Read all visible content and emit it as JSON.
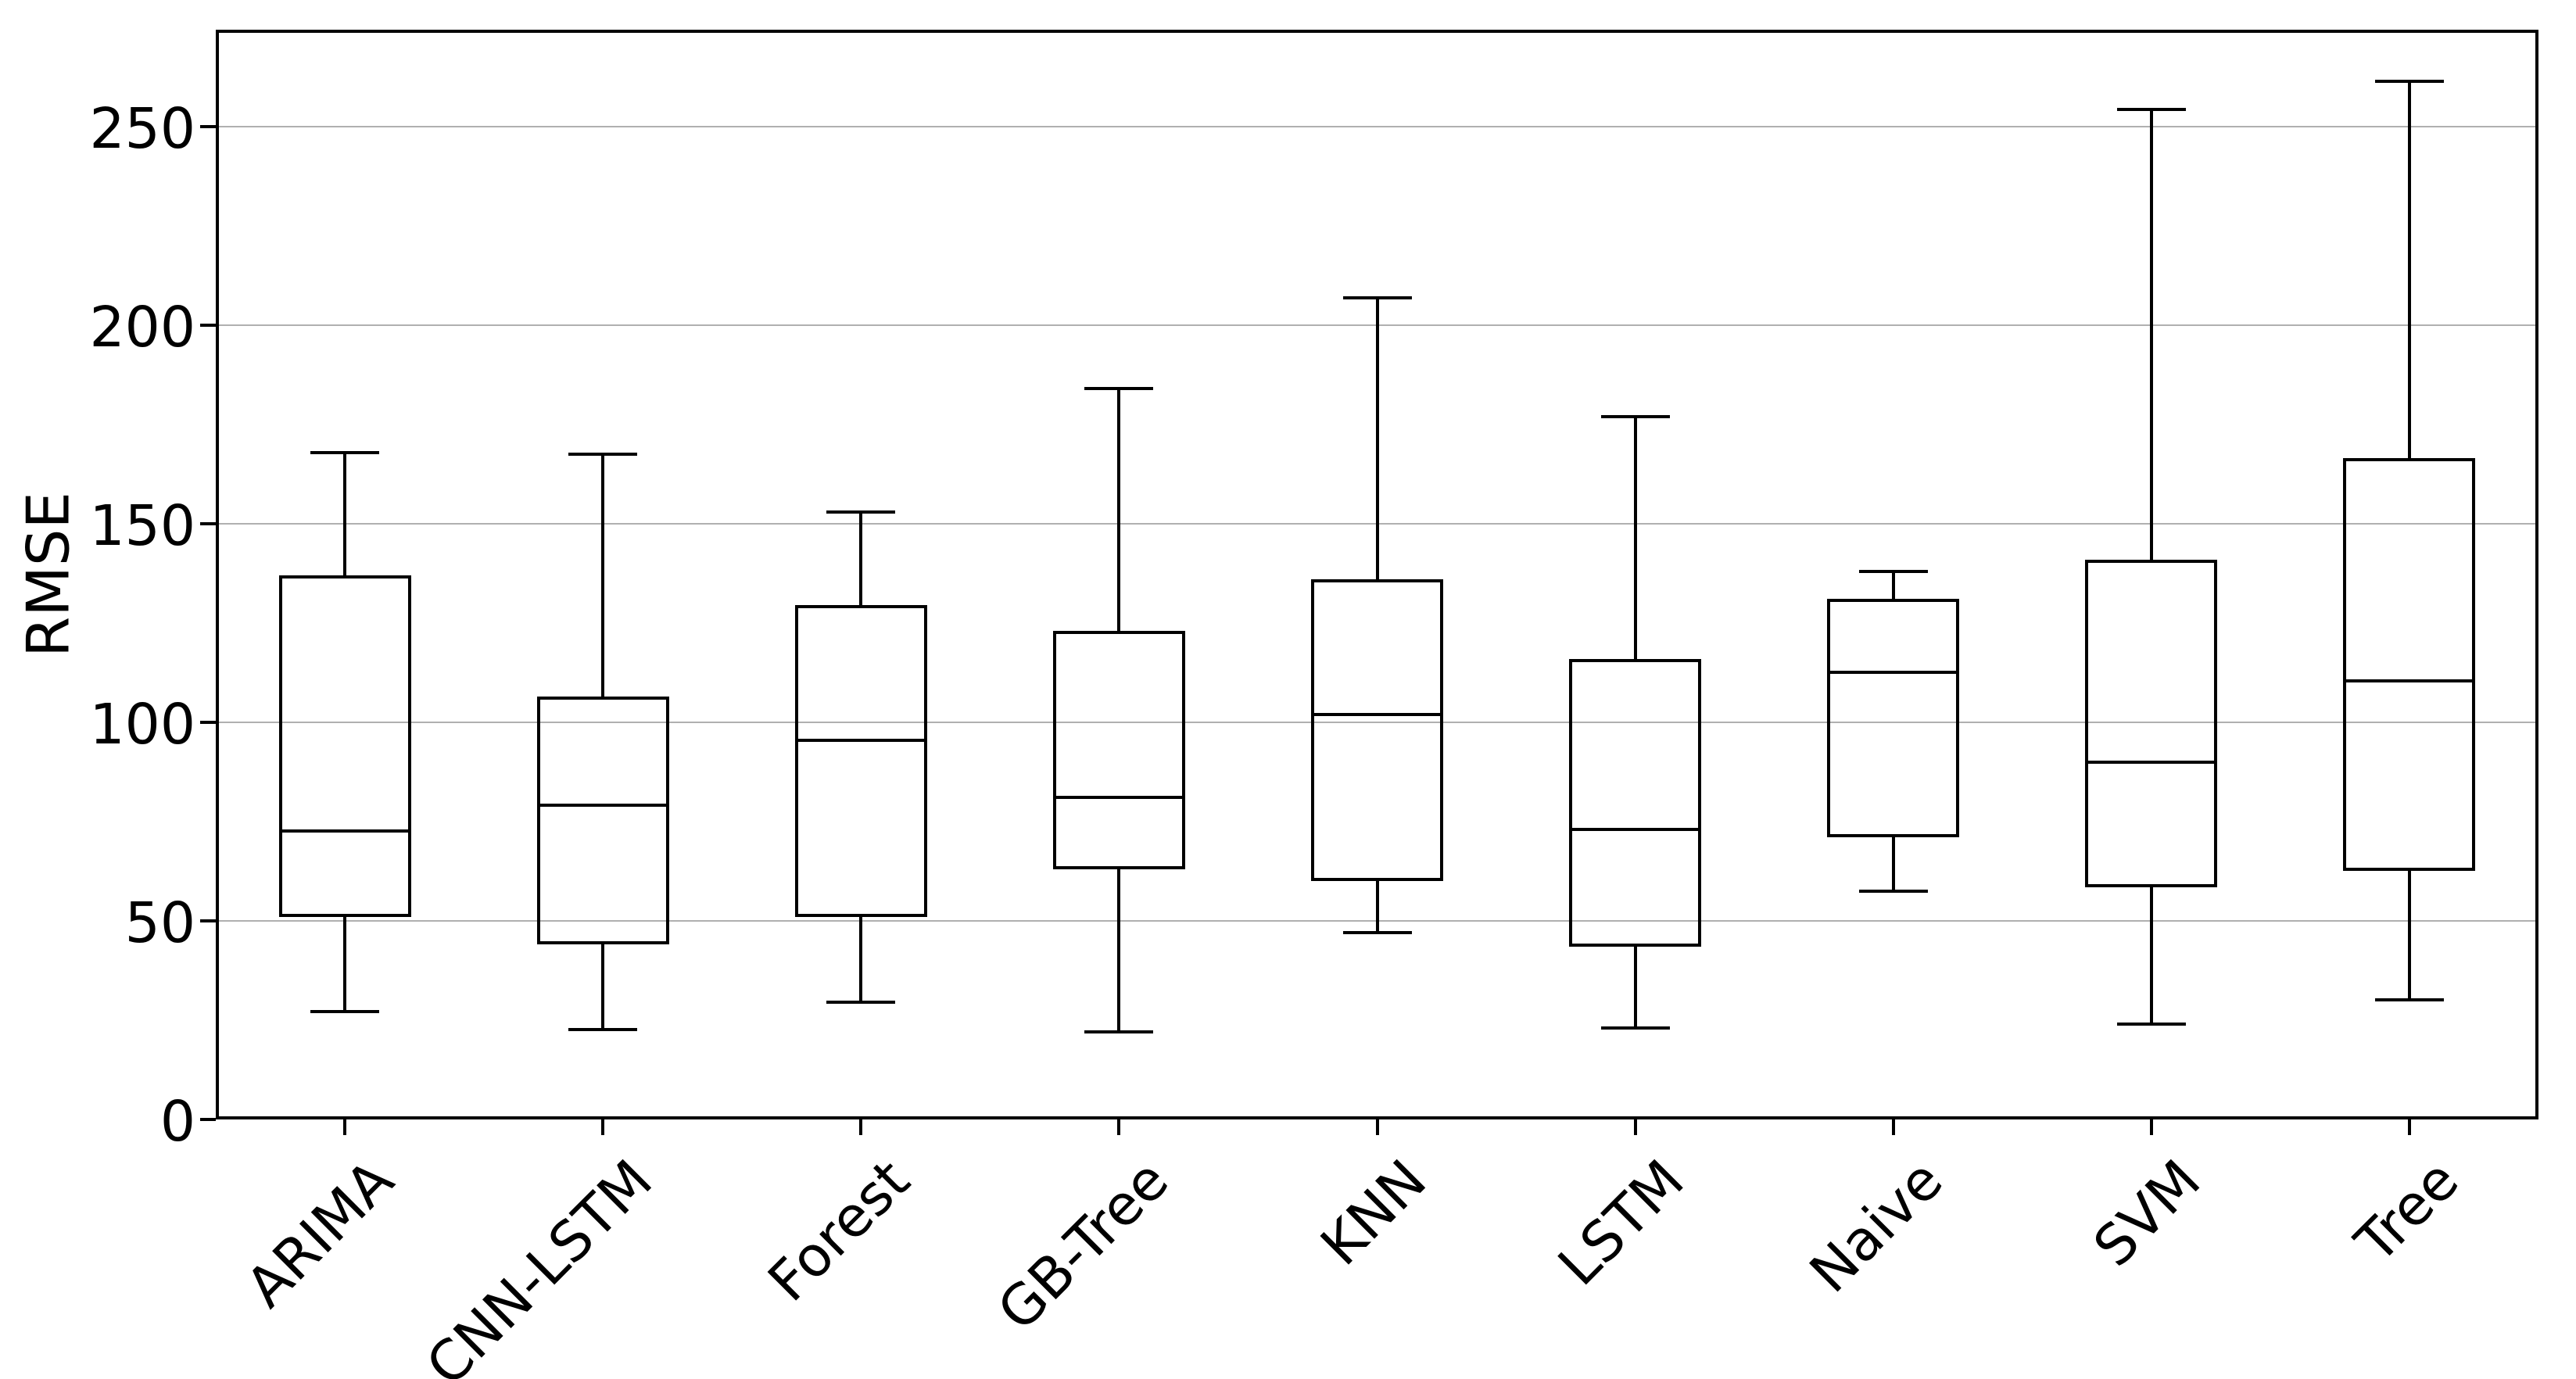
{
  "chart_data": {
    "type": "box",
    "title": "",
    "ylabel": "RMSE",
    "xlabel": "",
    "categories": [
      "ARIMA",
      "CNN-LSTM",
      "Forest",
      "GB-Tree",
      "KNN",
      "LSTM",
      "Naive",
      "SVM",
      "Tree"
    ],
    "series": [
      {
        "name": "ARIMA",
        "whislo": 27,
        "q1": 51,
        "med": 72.5,
        "q3": 137,
        "whishi": 168
      },
      {
        "name": "CNN-LSTM",
        "whislo": 22.5,
        "q1": 44,
        "med": 79,
        "q3": 106.5,
        "whishi": 167.5
      },
      {
        "name": "Forest",
        "whislo": 29.5,
        "q1": 51,
        "med": 95.5,
        "q3": 129.5,
        "whishi": 153
      },
      {
        "name": "GB-Tree",
        "whislo": 22,
        "q1": 63,
        "med": 81,
        "q3": 123,
        "whishi": 184
      },
      {
        "name": "KNN",
        "whislo": 47,
        "q1": 60,
        "med": 102,
        "q3": 136,
        "whishi": 207
      },
      {
        "name": "LSTM",
        "whislo": 23,
        "q1": 43.5,
        "med": 73,
        "q3": 116,
        "whishi": 177
      },
      {
        "name": "Naive",
        "whislo": 57.5,
        "q1": 71,
        "med": 112.5,
        "q3": 131,
        "whishi": 138
      },
      {
        "name": "SVM",
        "whislo": 24,
        "q1": 58.5,
        "med": 90,
        "q3": 141,
        "whishi": 254.5
      },
      {
        "name": "Tree",
        "whislo": 30,
        "q1": 62.5,
        "med": 110.5,
        "q3": 166.5,
        "whishi": 261.5
      }
    ],
    "yticks": [
      0,
      50,
      100,
      150,
      200,
      250
    ],
    "ylim": [
      0,
      274.5
    ],
    "grid": true,
    "legend_position": "none",
    "colors": {
      "line": "#000000",
      "grid": "#b0b0b0",
      "background": "#ffffff",
      "text": "#000000"
    }
  }
}
